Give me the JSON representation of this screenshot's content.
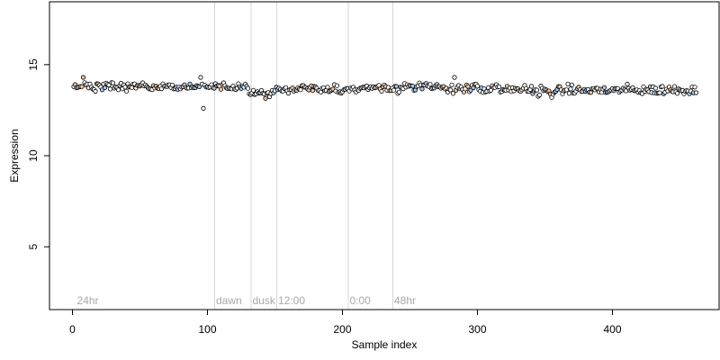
{
  "chart_data": {
    "type": "scatter",
    "xlabel": "Sample index",
    "ylabel": "Expression",
    "xlim": [
      -17,
      479
    ],
    "ylim": [
      1.55,
      18.45
    ],
    "x_ticks": [
      0,
      100,
      200,
      300,
      400
    ],
    "y_ticks": [
      5,
      10,
      15
    ],
    "grid": false,
    "legend": "none",
    "point_fill_colors": [
      "#ffffff",
      "#f4c49a",
      "#a8c8ec"
    ],
    "point_stroke_color": "#000000",
    "region_line_color": "#d6d6d6",
    "region_label_color": "#a8a8a8",
    "regions": [
      {
        "label": "24hr",
        "start": 2
      },
      {
        "label": "dawn",
        "start": 105
      },
      {
        "label": "dusk",
        "start": 132
      },
      {
        "label": "12:00",
        "start": 151
      },
      {
        "label": "0:00",
        "start": 204
      },
      {
        "label": "48hr",
        "start": 237
      }
    ],
    "series_points": {
      "count": 462,
      "baseline": 13.7,
      "segments": [
        {
          "from": 1,
          "to": 60,
          "mean": 13.8,
          "spread": 0.2
        },
        {
          "from": 61,
          "to": 130,
          "mean": 13.8,
          "spread": 0.15
        },
        {
          "from": 131,
          "to": 150,
          "mean": 13.45,
          "spread": 0.15
        },
        {
          "from": 151,
          "to": 215,
          "mean": 13.65,
          "spread": 0.2
        },
        {
          "from": 216,
          "to": 300,
          "mean": 13.75,
          "spread": 0.2
        },
        {
          "from": 301,
          "to": 462,
          "mean": 13.6,
          "spread": 0.2
        }
      ],
      "notable": [
        {
          "x": 8,
          "y": 14.3
        },
        {
          "x": 95,
          "y": 14.3
        },
        {
          "x": 97,
          "y": 12.6
        },
        {
          "x": 143,
          "y": 13.15
        },
        {
          "x": 283,
          "y": 14.3
        },
        {
          "x": 355,
          "y": 13.2
        }
      ]
    }
  }
}
